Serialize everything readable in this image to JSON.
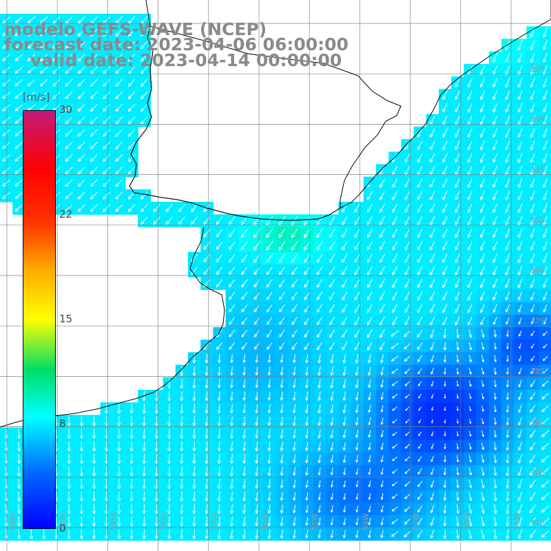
{
  "title": {
    "line1": "modelo GEFS-WAVE (NCEP)",
    "line2": "forecast date: 2023-04-06 06:00:00",
    "line3": "valid date: 2023-04-14 00:00:00"
  },
  "colorbar": {
    "unit": "[m/s]",
    "ticks": [
      {
        "label": "30",
        "value": 30
      },
      {
        "label": "22",
        "value": 22
      },
      {
        "label": "15",
        "value": 15
      },
      {
        "label": "8",
        "value": 8
      },
      {
        "label": "0",
        "value": 0
      }
    ],
    "min": 0,
    "max": 30
  },
  "map": {
    "lat_labels": [
      "32S",
      "33S",
      "34S",
      "35S",
      "36S",
      "37S",
      "38S",
      "39S",
      "40S",
      "41S"
    ],
    "lon_labels": [
      "61W",
      "60W",
      "59W",
      "58W",
      "57W",
      "56W",
      "55W",
      "54W",
      "53W",
      "52W",
      "51W"
    ],
    "colors": {
      "land": "#ffffff",
      "grid": "#808080",
      "coast": "#000000",
      "arrow": "#ffffff"
    }
  }
}
